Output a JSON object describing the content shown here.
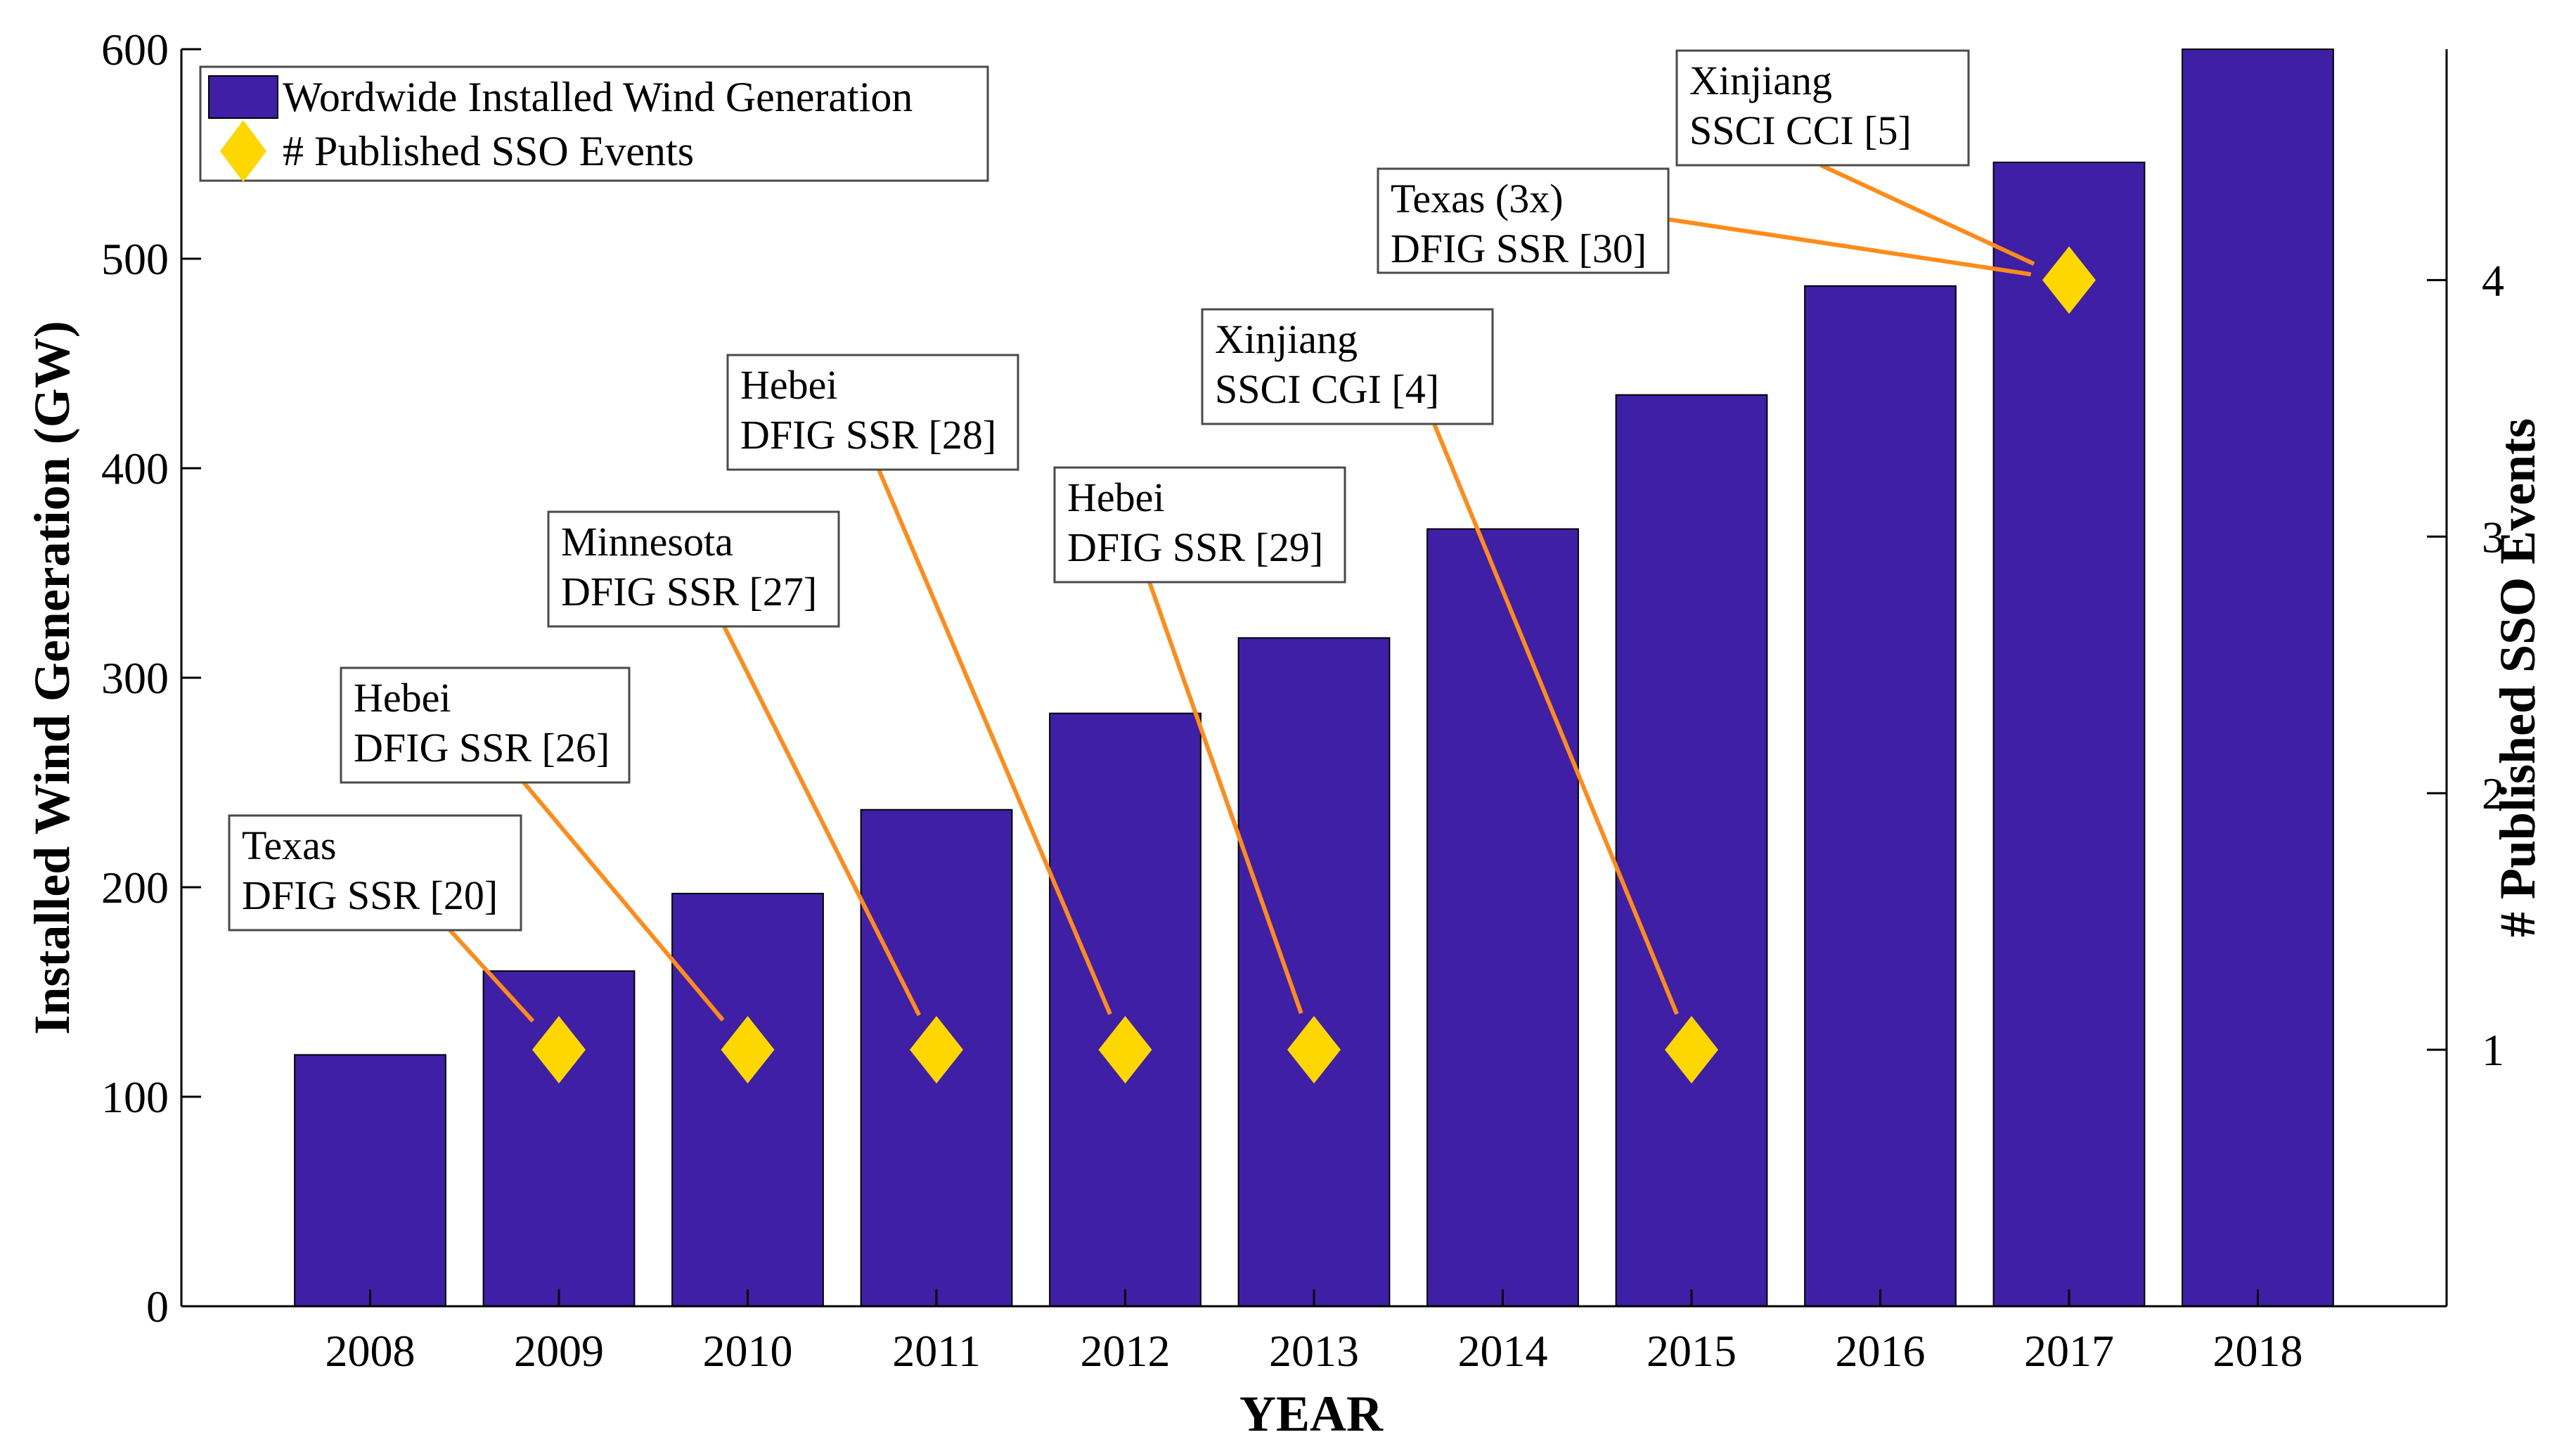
{
  "chart_data": {
    "type": "bar",
    "categories": [
      "2008",
      "2009",
      "2010",
      "2011",
      "2012",
      "2013",
      "2014",
      "2015",
      "2016",
      "2017",
      "2018"
    ],
    "series": [
      {
        "name": "Wordwide Installed Wind Generation",
        "type": "bar",
        "axis": "left",
        "values": [
          120,
          160,
          197,
          237,
          283,
          319,
          371,
          435,
          487,
          546,
          600
        ]
      },
      {
        "name": "# Published SSO Events",
        "type": "scatter",
        "marker": "diamond",
        "axis": "right",
        "points": [
          {
            "x": "2009",
            "y": 1
          },
          {
            "x": "2010",
            "y": 1
          },
          {
            "x": "2011",
            "y": 1
          },
          {
            "x": "2012",
            "y": 1
          },
          {
            "x": "2013",
            "y": 1
          },
          {
            "x": "2015",
            "y": 1
          },
          {
            "x": "2017",
            "y": 4
          }
        ]
      }
    ],
    "xlabel": "YEAR",
    "ylabel": "Installed Wind Generation (GW)",
    "y2label": "# Published SSO Events",
    "ylim": [
      0,
      600
    ],
    "yticks": [
      "0",
      "100",
      "200",
      "300",
      "400",
      "500",
      "600"
    ],
    "y2lim": [
      0,
      4.9
    ],
    "y2ticks": [
      "1",
      "2",
      "3",
      "4"
    ],
    "legend_position": "top-left",
    "grid": false,
    "colors": {
      "bar": "#3f1fa6",
      "marker": "#ffd700",
      "arrow": "#ff8c1a"
    },
    "annotations": [
      {
        "line1": "Texas",
        "line2": "DFIG SSR [20]",
        "target": "2009"
      },
      {
        "line1": "Hebei",
        "line2": "DFIG SSR [26]",
        "target": "2010"
      },
      {
        "line1": "Minnesota",
        "line2": "DFIG SSR [27]",
        "target": "2011"
      },
      {
        "line1": "Hebei",
        "line2": "DFIG SSR [28]",
        "target": "2012"
      },
      {
        "line1": "Hebei",
        "line2": "DFIG SSR [29]",
        "target": "2013"
      },
      {
        "line1": "Xinjiang",
        "line2": "SSCI CGI [4]",
        "target": "2015"
      },
      {
        "line1": "Texas (3x)",
        "line2": "DFIG SSR [30]",
        "target": "2017"
      },
      {
        "line1": "Xinjiang",
        "line2": "SSCI CCI [5]",
        "target": "2017"
      }
    ]
  }
}
